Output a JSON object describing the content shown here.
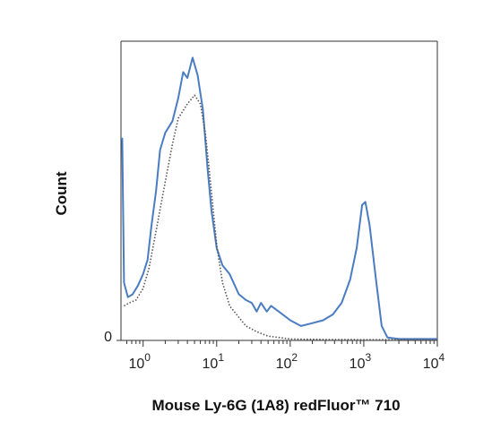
{
  "chart_data": {
    "type": "line",
    "title": "",
    "xlabel": "Mouse Ly-6G (1A8) redFluor™ 710",
    "ylabel": "Count",
    "x_scale": "biexponential",
    "xlim": [
      0.5,
      10000
    ],
    "ylim": [
      0,
      1
    ],
    "x_ticks": [
      {
        "base": "10",
        "exp": "0",
        "value": 1
      },
      {
        "base": "10",
        "exp": "1",
        "value": 10
      },
      {
        "base": "10",
        "exp": "2",
        "value": 100
      },
      {
        "base": "10",
        "exp": "3",
        "value": 1000
      },
      {
        "base": "10",
        "exp": "4",
        "value": 10000
      }
    ],
    "y_ticks": [
      {
        "label": "0",
        "value": 0
      }
    ],
    "grid": false,
    "legend": "none",
    "series": [
      {
        "color": "#4a7cc2",
        "style": "solid",
        "points": [
          [
            0.5,
            0.7
          ],
          [
            0.52,
            0.7
          ],
          [
            0.55,
            0.2
          ],
          [
            0.62,
            0.15
          ],
          [
            0.72,
            0.16
          ],
          [
            0.85,
            0.19
          ],
          [
            1.0,
            0.23
          ],
          [
            1.15,
            0.28
          ],
          [
            1.3,
            0.4
          ],
          [
            1.5,
            0.52
          ],
          [
            1.7,
            0.66
          ],
          [
            2.0,
            0.72
          ],
          [
            2.5,
            0.76
          ],
          [
            3.0,
            0.84
          ],
          [
            3.5,
            0.93
          ],
          [
            4.0,
            0.91
          ],
          [
            4.7,
            0.98
          ],
          [
            5.5,
            0.92
          ],
          [
            6.5,
            0.8
          ],
          [
            7.5,
            0.6
          ],
          [
            8.5,
            0.45
          ],
          [
            10,
            0.32
          ],
          [
            12,
            0.26
          ],
          [
            15,
            0.23
          ],
          [
            20,
            0.16
          ],
          [
            25,
            0.14
          ],
          [
            30,
            0.13
          ],
          [
            35,
            0.1
          ],
          [
            40,
            0.13
          ],
          [
            48,
            0.1
          ],
          [
            55,
            0.12
          ],
          [
            70,
            0.1
          ],
          [
            100,
            0.07
          ],
          [
            140,
            0.05
          ],
          [
            200,
            0.06
          ],
          [
            280,
            0.07
          ],
          [
            380,
            0.09
          ],
          [
            500,
            0.13
          ],
          [
            650,
            0.21
          ],
          [
            800,
            0.32
          ],
          [
            950,
            0.47
          ],
          [
            1050,
            0.48
          ],
          [
            1200,
            0.4
          ],
          [
            1450,
            0.22
          ],
          [
            1750,
            0.05
          ],
          [
            2100,
            0.01
          ],
          [
            3000,
            0.005
          ],
          [
            10000,
            0.005
          ]
        ]
      },
      {
        "color": "#555555",
        "style": "dotted",
        "points": [
          [
            0.55,
            0.12
          ],
          [
            0.65,
            0.13
          ],
          [
            0.8,
            0.14
          ],
          [
            1.0,
            0.18
          ],
          [
            1.2,
            0.25
          ],
          [
            1.5,
            0.38
          ],
          [
            2.0,
            0.55
          ],
          [
            2.5,
            0.68
          ],
          [
            3.0,
            0.77
          ],
          [
            4.0,
            0.82
          ],
          [
            5.0,
            0.85
          ],
          [
            6.0,
            0.82
          ],
          [
            7.0,
            0.72
          ],
          [
            8.0,
            0.58
          ],
          [
            9.0,
            0.45
          ],
          [
            10,
            0.33
          ],
          [
            12,
            0.2
          ],
          [
            15,
            0.12
          ],
          [
            20,
            0.08
          ],
          [
            25,
            0.05
          ],
          [
            35,
            0.03
          ],
          [
            50,
            0.015
          ],
          [
            100,
            0.005
          ],
          [
            300,
            0.003
          ],
          [
            10000,
            0.002
          ]
        ]
      }
    ]
  }
}
